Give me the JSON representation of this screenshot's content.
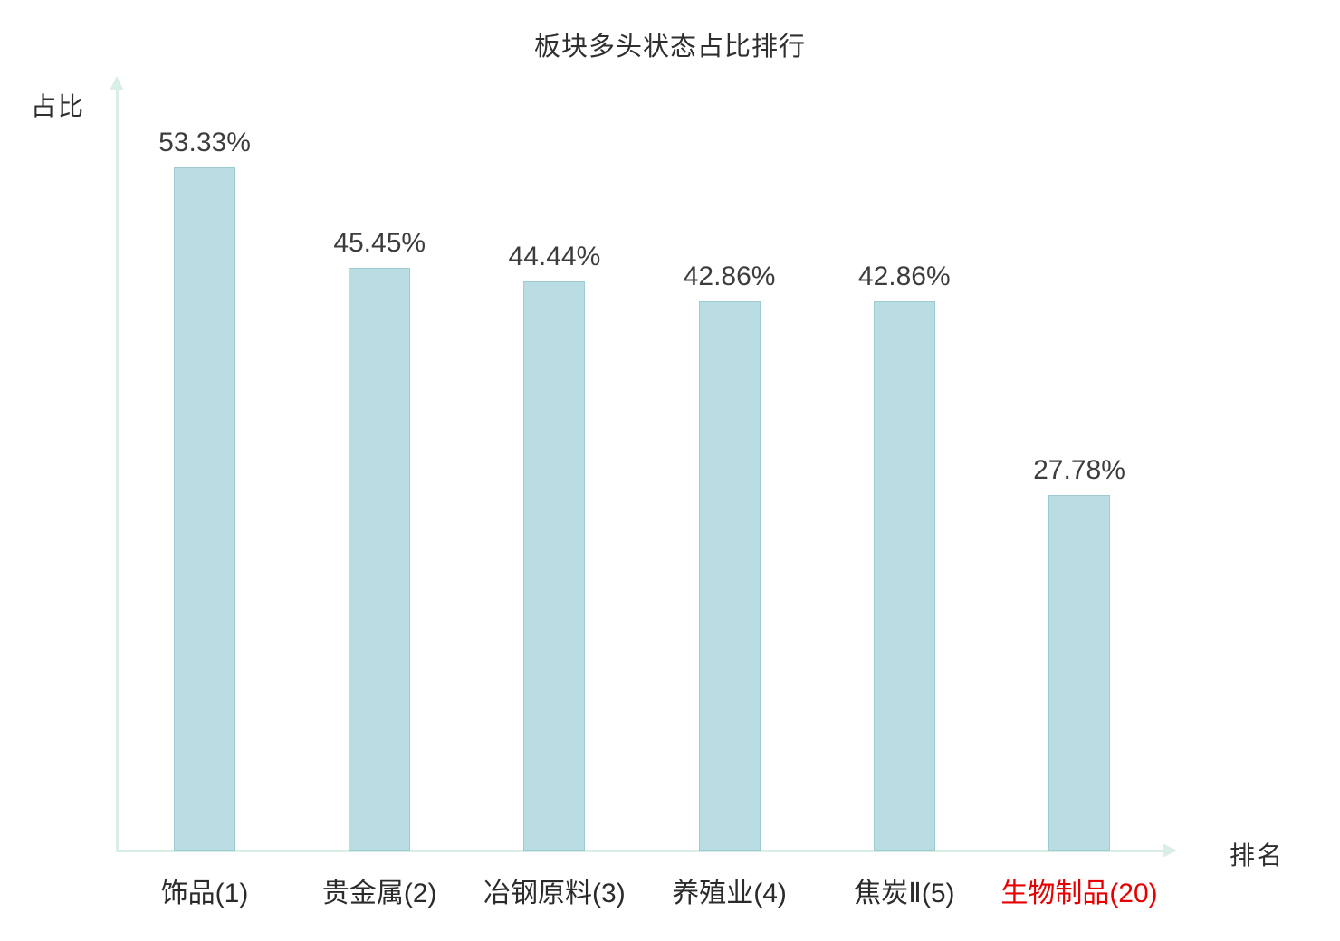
{
  "chart_data": {
    "type": "bar",
    "title": "板块多头状态占比排行",
    "ylabel": "占比",
    "xlabel": "排名",
    "categories": [
      "饰品(1)",
      "贵金属(2)",
      "冶钢原料(3)",
      "养殖业(4)",
      "焦炭Ⅱ(5)",
      "生物制品(20)"
    ],
    "values": [
      53.33,
      45.45,
      44.44,
      42.86,
      42.86,
      27.78
    ],
    "value_labels": [
      "53.33%",
      "45.45%",
      "44.44%",
      "42.86%",
      "42.86%",
      "27.78%"
    ],
    "highlight_index": 5,
    "ylim": [
      0,
      60
    ],
    "grid": false,
    "legend": false,
    "colors": {
      "bar_fill": "#b9dde2",
      "bar_border": "#9ccbd2",
      "axis": "#d9efe6",
      "text": "#3d3d3d",
      "highlight_text": "#e60000"
    }
  }
}
